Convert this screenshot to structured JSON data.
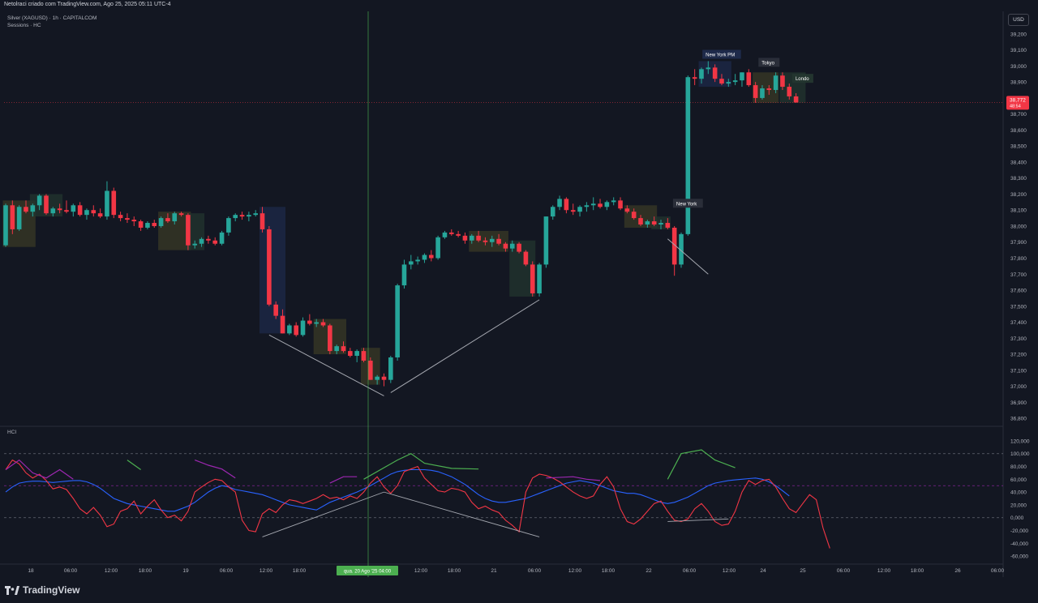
{
  "header": {
    "title": "Netolraci criado com TradingView.com, Ago 25, 2025 05:11 UTC-4"
  },
  "legend": {
    "symbol": "Silver (XAGUSD) · 1h · CAPITALCOM",
    "indicator": "Sessions · HC"
  },
  "currency_button": "USD",
  "price_label": {
    "value": "38,772",
    "countdown": "48:54"
  },
  "indicator_name": "HCI",
  "crosshair_label": "qua. 20 Ago '25   04:00",
  "brand": "TradingView",
  "colors": {
    "up": "#26a69a",
    "down": "#f23645",
    "background": "#131722",
    "blue_line": "#2962ff",
    "green_line": "#4caf50",
    "purple_line": "#9c27b0",
    "red_line": "#f23645"
  },
  "chart_data": [
    {
      "type": "candlestick",
      "title": "",
      "y_ticks": [
        "39,200",
        "39,100",
        "39,000",
        "38,900",
        "38,800",
        "38,700",
        "38,600",
        "38,500",
        "38,400",
        "38,300",
        "38,200",
        "38,100",
        "38,000",
        "37,900",
        "37,800",
        "37,700",
        "37,600",
        "37,500",
        "37,400",
        "37,300",
        "37,200",
        "37,100",
        "37,000",
        "36,900",
        "36,800"
      ],
      "ylim": [
        36760,
        39260
      ],
      "x_ticks": [
        "18",
        "06:00",
        "12:00",
        "18:00",
        "19",
        "06:00",
        "12:00",
        "18:00",
        "21",
        "06:00",
        "12:00",
        "18:00",
        "22",
        "06:00",
        "12:00",
        "24",
        "25",
        "06:00",
        "12:00",
        "18:00",
        "26",
        "06:00"
      ],
      "session_labels": [
        "New York PM",
        "Tokyo",
        "Londo",
        "New York"
      ],
      "candles": [
        [
          37880,
          38140,
          37870,
          38130
        ],
        [
          38130,
          38160,
          37950,
          37980
        ],
        [
          37980,
          38130,
          37970,
          38120
        ],
        [
          38120,
          38160,
          38080,
          38090
        ],
        [
          38090,
          38140,
          38060,
          38130
        ],
        [
          38130,
          38200,
          38100,
          38190
        ],
        [
          38190,
          38200,
          38070,
          38080
        ],
        [
          38080,
          38120,
          38060,
          38110
        ],
        [
          38110,
          38140,
          38080,
          38100
        ],
        [
          38100,
          38160,
          38080,
          38090
        ],
        [
          38090,
          38140,
          38060,
          38130
        ],
        [
          38130,
          38150,
          38060,
          38070
        ],
        [
          38070,
          38110,
          38040,
          38100
        ],
        [
          38100,
          38130,
          38060,
          38080
        ],
        [
          38080,
          38110,
          38050,
          38060
        ],
        [
          38060,
          38280,
          38040,
          38220
        ],
        [
          38220,
          38240,
          38050,
          38070
        ],
        [
          38070,
          38090,
          38030,
          38050
        ],
        [
          38050,
          38080,
          38020,
          38040
        ],
        [
          38040,
          38060,
          38000,
          38030
        ],
        [
          38030,
          38040,
          37970,
          37990
        ],
        [
          37990,
          38030,
          37980,
          38020
        ],
        [
          38020,
          38040,
          37990,
          38000
        ],
        [
          38000,
          38060,
          37990,
          38050
        ],
        [
          38050,
          38080,
          38020,
          38030
        ],
        [
          38030,
          38090,
          38010,
          38080
        ],
        [
          38080,
          38090,
          38060,
          38070
        ],
        [
          38070,
          38080,
          37850,
          37880
        ],
        [
          37880,
          37910,
          37860,
          37890
        ],
        [
          37890,
          37930,
          37870,
          37920
        ],
        [
          37920,
          37940,
          37890,
          37910
        ],
        [
          37910,
          37930,
          37880,
          37890
        ],
        [
          37890,
          37970,
          37880,
          37960
        ],
        [
          37960,
          38060,
          37940,
          38050
        ],
        [
          38050,
          38080,
          38030,
          38070
        ],
        [
          38070,
          38090,
          38040,
          38060
        ],
        [
          38060,
          38090,
          38030,
          38070
        ],
        [
          38070,
          38100,
          38060,
          38080
        ],
        [
          38080,
          38120,
          37960,
          37980
        ],
        [
          37980,
          38000,
          37500,
          37510
        ],
        [
          37510,
          37530,
          37420,
          37440
        ],
        [
          37440,
          37480,
          37330,
          37330
        ],
        [
          37330,
          37390,
          37320,
          37380
        ],
        [
          37380,
          37400,
          37310,
          37320
        ],
        [
          37320,
          37430,
          37310,
          37410
        ],
        [
          37410,
          37450,
          37380,
          37390
        ],
        [
          37390,
          37420,
          37370,
          37400
        ],
        [
          37400,
          37420,
          37370,
          37380
        ],
        [
          37380,
          37390,
          37200,
          37220
        ],
        [
          37220,
          37260,
          37200,
          37250
        ],
        [
          37250,
          37280,
          37210,
          37220
        ],
        [
          37220,
          37240,
          37180,
          37190
        ],
        [
          37190,
          37230,
          37150,
          37220
        ],
        [
          37220,
          37240,
          37150,
          37160
        ],
        [
          37160,
          37180,
          37040,
          37040
        ],
        [
          37040,
          37070,
          37010,
          37060
        ],
        [
          37060,
          37080,
          37000,
          37040
        ],
        [
          37040,
          37190,
          37020,
          37180
        ],
        [
          37180,
          37640,
          37160,
          37630
        ],
        [
          37630,
          37790,
          37610,
          37760
        ],
        [
          37760,
          37820,
          37730,
          37780
        ],
        [
          37780,
          37810,
          37760,
          37790
        ],
        [
          37790,
          37830,
          37770,
          37820
        ],
        [
          37820,
          37850,
          37780,
          37800
        ],
        [
          37800,
          37940,
          37790,
          37930
        ],
        [
          37930,
          37970,
          37920,
          37960
        ],
        [
          37960,
          37980,
          37940,
          37950
        ],
        [
          37950,
          37970,
          37930,
          37940
        ],
        [
          37940,
          37960,
          37890,
          37910
        ],
        [
          37910,
          37950,
          37890,
          37940
        ],
        [
          37940,
          37970,
          37900,
          37910
        ],
        [
          37910,
          37930,
          37880,
          37900
        ],
        [
          37900,
          37940,
          37870,
          37920
        ],
        [
          37920,
          37950,
          37880,
          37890
        ],
        [
          37890,
          37900,
          37840,
          37860
        ],
        [
          37860,
          37910,
          37840,
          37890
        ],
        [
          37890,
          37900,
          37830,
          37840
        ],
        [
          37840,
          37850,
          37750,
          37760
        ],
        [
          37760,
          37780,
          37560,
          37580
        ],
        [
          37580,
          37770,
          37560,
          37760
        ],
        [
          37760,
          38060,
          37740,
          38060
        ],
        [
          38060,
          38130,
          38040,
          38120
        ],
        [
          38120,
          38190,
          38100,
          38170
        ],
        [
          38170,
          38180,
          38080,
          38100
        ],
        [
          38100,
          38140,
          38070,
          38090
        ],
        [
          38090,
          38130,
          38060,
          38120
        ],
        [
          38120,
          38150,
          38090,
          38130
        ],
        [
          38130,
          38180,
          38100,
          38140
        ],
        [
          38140,
          38170,
          38110,
          38120
        ],
        [
          38120,
          38160,
          38100,
          38150
        ],
        [
          38150,
          38180,
          38130,
          38160
        ],
        [
          38160,
          38180,
          38100,
          38110
        ],
        [
          38110,
          38130,
          38080,
          38090
        ],
        [
          38090,
          38110,
          38040,
          38050
        ],
        [
          38050,
          38070,
          38000,
          38010
        ],
        [
          38010,
          38040,
          37990,
          38030
        ],
        [
          38030,
          38060,
          38000,
          38010
        ],
        [
          38010,
          38040,
          37980,
          38020
        ],
        [
          38020,
          38050,
          37980,
          37990
        ],
        [
          37990,
          38000,
          37690,
          37760
        ],
        [
          37760,
          37960,
          37740,
          37950
        ],
        [
          37950,
          38940,
          37940,
          38930
        ],
        [
          38930,
          38980,
          38880,
          38920
        ],
        [
          38920,
          38990,
          38890,
          38980
        ],
        [
          38980,
          39030,
          38950,
          38990
        ],
        [
          38990,
          39010,
          38900,
          38920
        ],
        [
          38920,
          38950,
          38880,
          38890
        ],
        [
          38890,
          38920,
          38870,
          38900
        ],
        [
          38900,
          38950,
          38880,
          38910
        ],
        [
          38910,
          38960,
          38870,
          38960
        ],
        [
          38960,
          38980,
          38870,
          38880
        ],
        [
          38880,
          38900,
          38770,
          38800
        ],
        [
          38800,
          38880,
          38790,
          38860
        ],
        [
          38860,
          38880,
          38820,
          38850
        ],
        [
          38850,
          38960,
          38830,
          38940
        ],
        [
          38940,
          38960,
          38850,
          38870
        ],
        [
          38870,
          38890,
          38790,
          38810
        ],
        [
          38810,
          38830,
          38770,
          38772
        ]
      ]
    },
    {
      "type": "line",
      "title": "",
      "y_ticks": [
        "120,000",
        "100,000",
        "80,000",
        "60,000",
        "40,000",
        "20,000",
        "0,000",
        "-20,000",
        "-40,000",
        "-60,000"
      ],
      "ylim": [
        -70,
        125
      ],
      "reference_levels": [
        100,
        50,
        0
      ],
      "series": [
        {
          "color": "#2962ff",
          "values": [
            40,
            48,
            54,
            56,
            57,
            57,
            56,
            55,
            56,
            57,
            58,
            58,
            56,
            52,
            46,
            38,
            30,
            26,
            22,
            20,
            18,
            16,
            14,
            12,
            10,
            10,
            14,
            18,
            24,
            32,
            40,
            46,
            50,
            48,
            44,
            42,
            40,
            38,
            36,
            32,
            28,
            24,
            20,
            18,
            16,
            14,
            12,
            18,
            24,
            28,
            32,
            36,
            40,
            45,
            50,
            56,
            62,
            68,
            72,
            74,
            75,
            75,
            75,
            74,
            72,
            68,
            64,
            58,
            52,
            44,
            36,
            30,
            26,
            24,
            24,
            26,
            28,
            30,
            34,
            38,
            42,
            46,
            50,
            54,
            56,
            58,
            56,
            54,
            50,
            46,
            42,
            40,
            38,
            38,
            36,
            32,
            28,
            24,
            22,
            24,
            28,
            32,
            38,
            44,
            50,
            54,
            56,
            58,
            59,
            60,
            61,
            62,
            60,
            56,
            50,
            42,
            34
          ]
        },
        {
          "color": "#f23645",
          "values": [
            75,
            90,
            84,
            70,
            62,
            68,
            58,
            45,
            48,
            44,
            30,
            14,
            6,
            16,
            4,
            -14,
            -10,
            10,
            14,
            26,
            6,
            18,
            28,
            12,
            0,
            4,
            -5,
            10,
            40,
            48,
            55,
            60,
            58,
            48,
            40,
            -4,
            -20,
            -22,
            6,
            14,
            8,
            20,
            28,
            26,
            22,
            26,
            30,
            36,
            30,
            32,
            28,
            34,
            30,
            40,
            54,
            64,
            48,
            38,
            50,
            72,
            76,
            80,
            62,
            52,
            42,
            40,
            46,
            44,
            40,
            24,
            14,
            18,
            12,
            8,
            -4,
            -12,
            -22,
            40,
            62,
            68,
            66,
            62,
            56,
            48,
            40,
            34,
            30,
            34,
            52,
            64,
            48,
            14,
            -6,
            -10,
            -2,
            10,
            22,
            26,
            10,
            -4,
            -6,
            -2,
            14,
            22,
            10,
            -6,
            -12,
            -10,
            10,
            40,
            58,
            52,
            58,
            60,
            48,
            30,
            14,
            8,
            22,
            36,
            28,
            -16,
            -48
          ]
        },
        {
          "color": "#4caf50",
          "segments": [
            [
              [
                18,
                90
              ],
              [
                20,
                75
              ]
            ],
            [
              [
                53,
                60
              ],
              [
                58,
                90
              ],
              [
                60,
                100
              ],
              [
                62,
                85
              ],
              [
                66,
                77
              ],
              [
                70,
                76
              ]
            ],
            [
              [
                98,
                60
              ],
              [
                100,
                100
              ],
              [
                103,
                106
              ],
              [
                105,
                90
              ],
              [
                108,
                78
              ]
            ]
          ]
        },
        {
          "color": "#9c27b0",
          "segments": [
            [
              [
                0,
                75
              ],
              [
                2,
                90
              ],
              [
                4,
                70
              ],
              [
                6,
                62
              ],
              [
                8,
                75
              ],
              [
                10,
                60
              ]
            ],
            [
              [
                28,
                90
              ],
              [
                30,
                82
              ],
              [
                32,
                76
              ],
              [
                34,
                62
              ]
            ],
            [
              [
                48,
                54
              ],
              [
                50,
                64
              ],
              [
                52,
                64
              ]
            ],
            [
              [
                80,
                62
              ],
              [
                84,
                64
              ],
              [
                86,
                60
              ],
              [
                88,
                58
              ]
            ]
          ]
        }
      ]
    }
  ]
}
